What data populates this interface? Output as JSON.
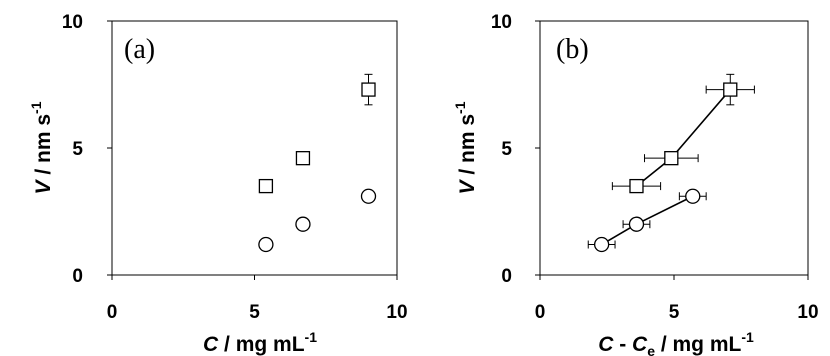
{
  "chart_data": [
    {
      "type": "scatter",
      "panel_label": "(a)",
      "xlabel": {
        "var": "C",
        "unit": " / mg mL",
        "sup": "-1"
      },
      "ylabel": {
        "var": "V",
        "unit": " / nm s",
        "sup": "-1"
      },
      "xlim": [
        0,
        10
      ],
      "ylim": [
        0,
        10
      ],
      "xticks": [
        "0",
        "5",
        "10"
      ],
      "yticks": [
        "0",
        "5",
        "10"
      ],
      "grid": false,
      "series": [
        {
          "marker": "square",
          "fit_line": false,
          "points": [
            {
              "x": 5.4,
              "y": 3.5
            },
            {
              "x": 6.7,
              "y": 4.6
            },
            {
              "x": 9.0,
              "y": 7.3,
              "yerr": 0.6
            }
          ]
        },
        {
          "marker": "circle",
          "fit_line": false,
          "points": [
            {
              "x": 5.4,
              "y": 1.2
            },
            {
              "x": 6.7,
              "y": 2.0
            },
            {
              "x": 9.0,
              "y": 3.1
            }
          ]
        }
      ]
    },
    {
      "type": "scatter",
      "panel_label": "(b)",
      "xlabel": {
        "var": "C",
        "mid": " - ",
        "var2": "C",
        "sub": "e",
        "unit": " / mg mL",
        "sup": "-1"
      },
      "ylabel": {
        "var": "V",
        "unit": " / nm s",
        "sup": "-1"
      },
      "xlim": [
        0,
        10
      ],
      "ylim": [
        0,
        10
      ],
      "xticks": [
        "0",
        "5",
        "10"
      ],
      "yticks": [
        "0",
        "5",
        "10"
      ],
      "grid": false,
      "series": [
        {
          "marker": "square",
          "fit_line": true,
          "points": [
            {
              "x": 3.6,
              "y": 3.5,
              "xerr": 0.9
            },
            {
              "x": 4.9,
              "y": 4.6,
              "xerr": 1.0
            },
            {
              "x": 7.1,
              "y": 7.3,
              "xerr": 0.9,
              "yerr": 0.6
            }
          ]
        },
        {
          "marker": "circle",
          "fit_line": true,
          "points": [
            {
              "x": 2.3,
              "y": 1.2,
              "xerr": 0.5
            },
            {
              "x": 3.6,
              "y": 2.0,
              "xerr": 0.5
            },
            {
              "x": 5.7,
              "y": 3.1,
              "xerr": 0.5
            }
          ]
        }
      ]
    }
  ]
}
